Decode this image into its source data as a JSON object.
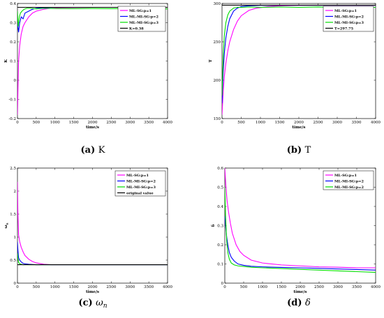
{
  "chart_data": [
    {
      "type": "line",
      "caption_tag": "(a)",
      "caption_text": "K",
      "xlabel": "time/s",
      "ylabel": "K",
      "xlim": [
        0,
        4000
      ],
      "ylim": [
        -0.2,
        0.4
      ],
      "xticks": [
        0,
        500,
        1000,
        1500,
        2000,
        2500,
        3000,
        3500,
        4000
      ],
      "yticks": [
        -0.2,
        -0.1,
        0,
        0.1,
        0.2,
        0.3,
        0.4
      ],
      "legend_position": "top-right",
      "series": [
        {
          "name": "ML-SG:p=1",
          "color": "#ff00ff",
          "x": [
            0,
            30,
            60,
            100,
            150,
            200,
            300,
            400,
            500,
            700,
            900,
            1200,
            1500,
            2000,
            2500,
            3000,
            3500,
            4000
          ],
          "y": [
            -0.18,
            0.1,
            0.18,
            0.24,
            0.28,
            0.3,
            0.33,
            0.35,
            0.36,
            0.37,
            0.375,
            0.378,
            0.379,
            0.38,
            0.38,
            0.38,
            0.38,
            0.38
          ]
        },
        {
          "name": "ML-MI-SG:p=2",
          "color": "#0000ff",
          "x": [
            0,
            30,
            60,
            100,
            150,
            200,
            300,
            400,
            500,
            700,
            1000,
            1500,
            2000,
            2500,
            3000,
            3500,
            4000
          ],
          "y": [
            0.3,
            0.25,
            0.3,
            0.33,
            0.32,
            0.35,
            0.36,
            0.37,
            0.375,
            0.378,
            0.38,
            0.38,
            0.38,
            0.38,
            0.38,
            0.38,
            0.38
          ]
        },
        {
          "name": "ML-MI-SG:p=3",
          "color": "#00dd00",
          "x": [
            0,
            20,
            50,
            80,
            120,
            180,
            250,
            350,
            500,
            700,
            1000,
            1500,
            2000,
            2500,
            3000,
            3500,
            4000
          ],
          "y": [
            0.36,
            0.28,
            0.33,
            0.35,
            0.36,
            0.37,
            0.375,
            0.375,
            0.372,
            0.375,
            0.374,
            0.373,
            0.374,
            0.373,
            0.374,
            0.373,
            0.372
          ]
        },
        {
          "name": "K=0.38",
          "color": "#000000",
          "x": [
            0,
            4000
          ],
          "y": [
            0.38,
            0.38
          ]
        }
      ]
    },
    {
      "type": "line",
      "caption_tag": "(b)",
      "caption_text": "T",
      "xlabel": "time/s",
      "ylabel": "T",
      "xlim": [
        0,
        4000
      ],
      "ylim": [
        150,
        300
      ],
      "xticks": [
        0,
        500,
        1000,
        1500,
        2000,
        2500,
        3000,
        3500,
        4000
      ],
      "yticks": [
        150,
        200,
        250,
        300
      ],
      "legend_position": "top-right",
      "series": [
        {
          "name": "ML-SG:p=1",
          "color": "#ff00ff",
          "x": [
            0,
            30,
            60,
            100,
            150,
            200,
            300,
            400,
            500,
            700,
            900,
            1200,
            1500,
            2000,
            2500,
            3000,
            3500,
            4000
          ],
          "y": [
            155,
            185,
            205,
            222,
            238,
            250,
            266,
            277,
            284,
            291,
            294,
            296,
            297,
            297.5,
            297.7,
            297.7,
            297.7,
            297.7
          ]
        },
        {
          "name": "ML-MI-SG:p=2",
          "color": "#0000ff",
          "x": [
            0,
            30,
            60,
            100,
            150,
            200,
            300,
            400,
            500,
            700,
            1000,
            1500,
            2000,
            2500,
            3000,
            3500,
            4000
          ],
          "y": [
            170,
            210,
            235,
            255,
            270,
            280,
            290,
            294,
            296,
            297,
            297.5,
            297.7,
            297.7,
            297.7,
            297.7,
            297.7,
            297.7
          ]
        },
        {
          "name": "ML-MI-SG:p=3",
          "color": "#00dd00",
          "x": [
            0,
            30,
            60,
            100,
            150,
            200,
            300,
            400,
            500,
            700,
            1000,
            1500,
            2000,
            2500,
            3000,
            3500,
            4000
          ],
          "y": [
            180,
            230,
            258,
            275,
            285,
            290,
            294,
            295,
            295,
            295.5,
            295,
            295.5,
            295,
            295.5,
            295,
            295.5,
            295
          ]
        },
        {
          "name": "T=297.75",
          "color": "#000000",
          "x": [
            0,
            4000
          ],
          "y": [
            297.75,
            297.75
          ]
        }
      ]
    },
    {
      "type": "line",
      "caption_tag": "(c)",
      "caption_text": "ω",
      "caption_sub": "n",
      "xlabel": "time/s",
      "ylabel": "ω",
      "ylabel_sub": "n",
      "xlim": [
        0,
        4000
      ],
      "ylim": [
        0,
        2.5
      ],
      "xticks": [
        0,
        500,
        1000,
        1500,
        2000,
        2500,
        3000,
        3500,
        4000
      ],
      "yticks": [
        0,
        0.5,
        1,
        1.5,
        2,
        2.5
      ],
      "legend_position": "top-right",
      "series": [
        {
          "name": "ML-SG:p=1",
          "color": "#ff00ff",
          "x": [
            0,
            10,
            30,
            60,
            100,
            150,
            200,
            300,
            400,
            500,
            700,
            900,
            1200,
            1500,
            2000,
            2500,
            3000,
            3500,
            4000
          ],
          "y": [
            2.2,
            1.6,
            1.05,
            0.9,
            0.78,
            0.68,
            0.6,
            0.52,
            0.47,
            0.44,
            0.41,
            0.4,
            0.4,
            0.4,
            0.4,
            0.4,
            0.4,
            0.4,
            0.4
          ]
        },
        {
          "name": "ML-MI-SG:p=2",
          "color": "#0000ff",
          "x": [
            0,
            10,
            30,
            60,
            100,
            150,
            200,
            300,
            500,
            1000,
            2000,
            3000,
            4000
          ],
          "y": [
            0.9,
            0.75,
            0.55,
            0.5,
            0.46,
            0.43,
            0.42,
            0.41,
            0.4,
            0.4,
            0.4,
            0.4,
            0.4
          ]
        },
        {
          "name": "ML-MI-SG:p=3",
          "color": "#00dd00",
          "x": [
            0,
            10,
            30,
            60,
            100,
            150,
            200,
            300,
            500,
            1000,
            2000,
            3000,
            4000
          ],
          "y": [
            0.65,
            0.55,
            0.45,
            0.42,
            0.41,
            0.4,
            0.4,
            0.4,
            0.4,
            0.4,
            0.4,
            0.4,
            0.4
          ]
        },
        {
          "name": "original value",
          "color": "#000000",
          "x": [
            0,
            4000
          ],
          "y": [
            0.4,
            0.4
          ]
        }
      ]
    },
    {
      "type": "line",
      "caption_tag": "(d)",
      "caption_text": "δ",
      "xlabel": "time/s",
      "ylabel": "δ",
      "xlim": [
        0,
        4000
      ],
      "ylim": [
        0,
        0.6
      ],
      "xticks": [
        0,
        500,
        1000,
        1500,
        2000,
        2500,
        3000,
        3500,
        4000
      ],
      "yticks": [
        0,
        0.1,
        0.2,
        0.3,
        0.4,
        0.5,
        0.6
      ],
      "legend_position": "top-right",
      "series": [
        {
          "name": "ML-SG:p=1",
          "color": "#ff00ff",
          "x": [
            0,
            30,
            60,
            100,
            150,
            200,
            300,
            400,
            500,
            700,
            1000,
            1500,
            2000,
            2500,
            3000,
            3500,
            4000
          ],
          "y": [
            0.6,
            0.5,
            0.43,
            0.37,
            0.31,
            0.26,
            0.2,
            0.165,
            0.145,
            0.12,
            0.105,
            0.095,
            0.09,
            0.085,
            0.083,
            0.08,
            0.08
          ]
        },
        {
          "name": "ML-MI-SG:p=2",
          "color": "#0000ff",
          "x": [
            0,
            20,
            50,
            80,
            120,
            170,
            250,
            350,
            500,
            700,
            1000,
            1500,
            2000,
            2500,
            3000,
            3500,
            4000
          ],
          "y": [
            0.35,
            0.3,
            0.24,
            0.2,
            0.16,
            0.135,
            0.115,
            0.1,
            0.093,
            0.088,
            0.085,
            0.082,
            0.08,
            0.077,
            0.074,
            0.071,
            0.068
          ]
        },
        {
          "name": "ML-MI-SG:p=2",
          "color": "#00dd00",
          "x": [
            0,
            20,
            50,
            80,
            120,
            170,
            250,
            350,
            500,
            700,
            1000,
            1500,
            2000,
            2500,
            3000,
            3500,
            4000
          ],
          "y": [
            0.5,
            0.35,
            0.22,
            0.16,
            0.125,
            0.105,
            0.095,
            0.09,
            0.087,
            0.083,
            0.08,
            0.076,
            0.072,
            0.068,
            0.064,
            0.06,
            0.056
          ]
        }
      ]
    }
  ]
}
